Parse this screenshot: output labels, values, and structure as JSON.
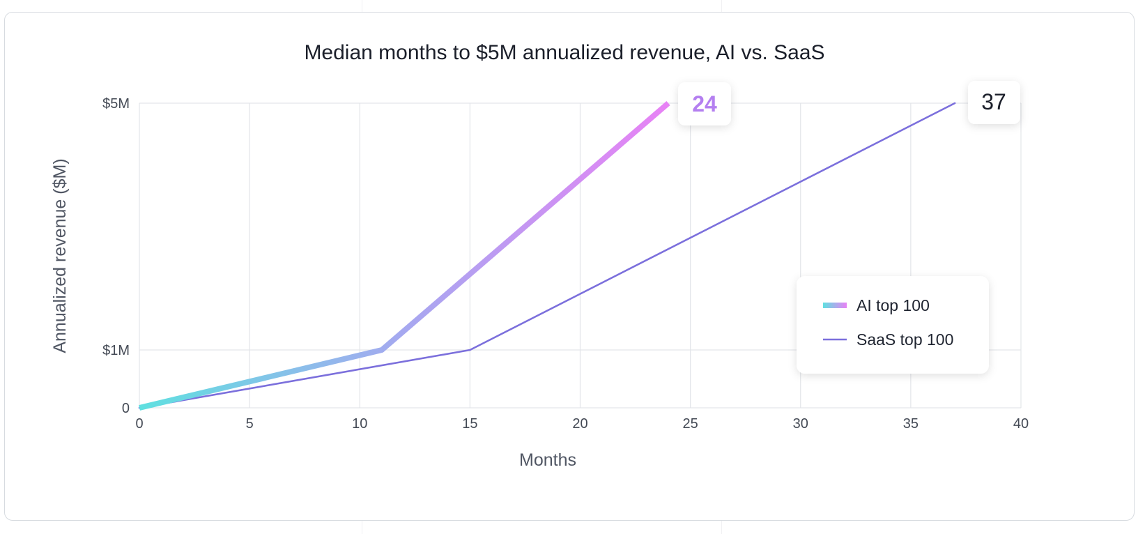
{
  "chart_data": {
    "type": "line",
    "title": "Median months to $5M annualized revenue, AI vs. SaaS",
    "xlabel": "Months",
    "ylabel": "Annualized revenue ($M)",
    "xlim": [
      0,
      40
    ],
    "ylim": [
      0,
      5
    ],
    "x_ticks": [
      0,
      5,
      10,
      15,
      20,
      25,
      30,
      35,
      40
    ],
    "x_tick_labels": [
      "0",
      "5",
      "10",
      "15",
      "20",
      "25",
      "30",
      "35",
      "40"
    ],
    "y_ticks": [
      0,
      1,
      5
    ],
    "y_tick_labels": [
      "0",
      "$1M",
      "$5M"
    ],
    "grid": true,
    "legend_position": "lower-right",
    "series": [
      {
        "name": "AI top 100",
        "x": [
          0,
          11,
          24
        ],
        "y": [
          0,
          1,
          5
        ],
        "end_label": "24",
        "colors": [
          "#5fe0e0",
          "#a6a8f0",
          "#e882f5"
        ]
      },
      {
        "name": "SaaS top 100",
        "x": [
          0,
          15,
          37
        ],
        "y": [
          0,
          1,
          5
        ],
        "end_label": "37",
        "colors": [
          "#7b6fdc"
        ]
      }
    ]
  }
}
